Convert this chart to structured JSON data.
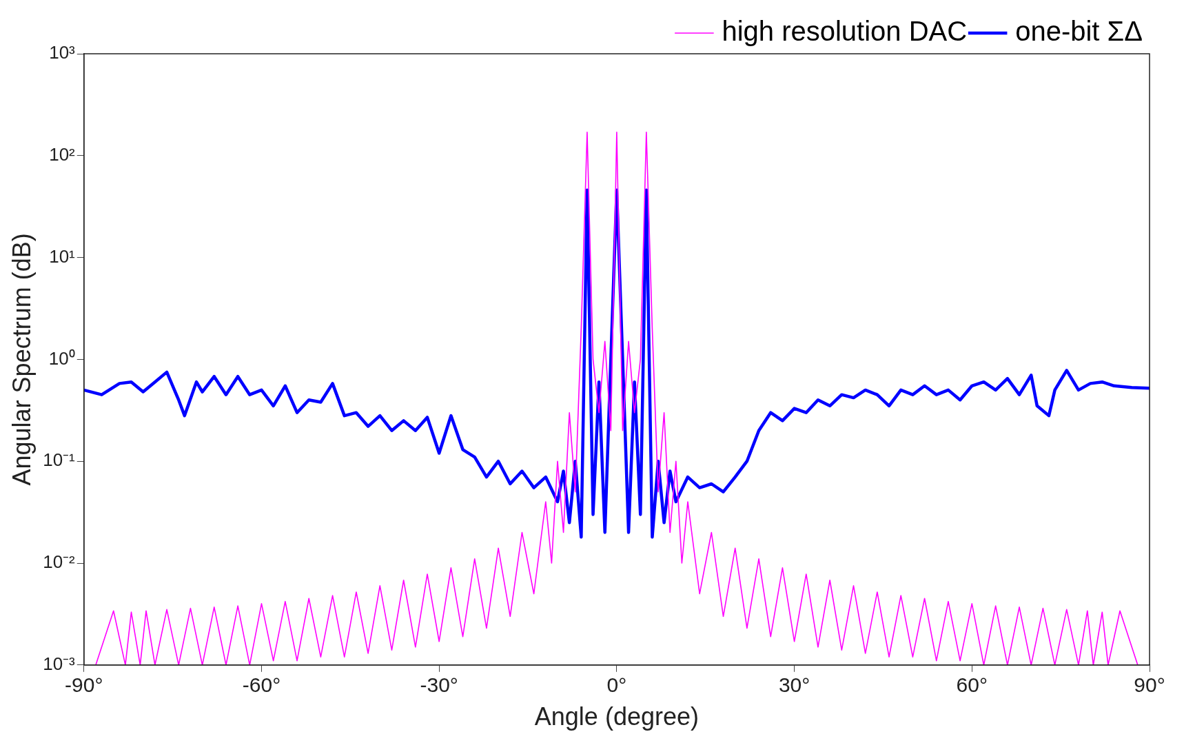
{
  "chart_data": {
    "type": "line",
    "xlabel": "Angle (degree)",
    "ylabel": "Angular Spectrum (dB)",
    "log": "y",
    "grid": false,
    "legend": "top right",
    "marker": "none",
    "line_style": "solid",
    "xlim": [
      -90,
      90
    ],
    "xticks": [
      {
        "value": -90,
        "label": "-90°"
      },
      {
        "value": -60,
        "label": "-60°"
      },
      {
        "value": -30,
        "label": "-30°"
      },
      {
        "value": 0,
        "label": "0°"
      },
      {
        "value": 30,
        "label": "30°"
      },
      {
        "value": 60,
        "label": "60°"
      },
      {
        "value": 90,
        "label": "90°"
      }
    ],
    "ylim": [
      0.001,
      1000
    ],
    "yticks": [
      {
        "value": 0.001,
        "label": "10⁻³"
      },
      {
        "value": 0.01,
        "label": "10⁻²"
      },
      {
        "value": 0.1,
        "label": "10⁻¹"
      },
      {
        "value": 1,
        "label": "10⁰"
      },
      {
        "value": 10,
        "label": "10¹"
      },
      {
        "value": 100,
        "label": "10²"
      },
      {
        "value": 1000,
        "label": "10³"
      }
    ],
    "series": [
      {
        "name": "high resolution DAC",
        "color": "#ff00ff",
        "x": [
          -88,
          -85,
          -83,
          -82,
          -80.5,
          -79.5,
          -78,
          -76,
          -74,
          -72,
          -70,
          -68,
          -66,
          -64,
          -62,
          -60,
          -58,
          -56,
          -54,
          -52,
          -50,
          -48,
          -46,
          -44,
          -42,
          -40,
          -38,
          -36,
          -34,
          -32,
          -30,
          -28,
          -26,
          -24,
          -22,
          -20,
          -18,
          -16,
          -14,
          -12,
          -11,
          -10,
          -9,
          -8,
          -7,
          -6,
          -5,
          -4,
          -3,
          -2,
          -1,
          0,
          1,
          2,
          3,
          4,
          5,
          6,
          7,
          8,
          9,
          10,
          11,
          12,
          14,
          16,
          18,
          20,
          22,
          24,
          26,
          28,
          30,
          32,
          34,
          36,
          38,
          40,
          42,
          44,
          46,
          48,
          50,
          52,
          54,
          56,
          58,
          60,
          62,
          64,
          66,
          68,
          70,
          72,
          74,
          76,
          78,
          79.5,
          80.5,
          82,
          83,
          85,
          88
        ],
        "values": [
          0.001,
          0.0034,
          0.001,
          0.0033,
          0.001,
          0.0034,
          0.001,
          0.0035,
          0.001,
          0.0036,
          0.001,
          0.0037,
          0.001,
          0.0038,
          0.001,
          0.004,
          0.0011,
          0.0042,
          0.0011,
          0.0045,
          0.0012,
          0.0048,
          0.0012,
          0.0052,
          0.0013,
          0.006,
          0.0014,
          0.0068,
          0.0015,
          0.0078,
          0.0017,
          0.009,
          0.0019,
          0.011,
          0.0023,
          0.014,
          0.003,
          0.02,
          0.005,
          0.04,
          0.01,
          0.1,
          0.02,
          0.3,
          0.05,
          2,
          170,
          1,
          0.3,
          1.5,
          0.2,
          170,
          0.2,
          1.5,
          0.3,
          1,
          170,
          2,
          0.05,
          0.3,
          0.02,
          0.1,
          0.01,
          0.04,
          0.005,
          0.02,
          0.003,
          0.014,
          0.0023,
          0.011,
          0.0019,
          0.009,
          0.0017,
          0.0078,
          0.0015,
          0.0068,
          0.0014,
          0.006,
          0.0013,
          0.0052,
          0.0012,
          0.0048,
          0.0012,
          0.0045,
          0.0011,
          0.0042,
          0.0011,
          0.004,
          0.001,
          0.0038,
          0.001,
          0.0037,
          0.001,
          0.0036,
          0.001,
          0.0035,
          0.001,
          0.0034,
          0.001,
          0.0033,
          0.001,
          0.0034,
          0.001
        ]
      },
      {
        "name": "one-bit ΣΔ",
        "color": "#0000ff",
        "x": [
          -90,
          -87,
          -84,
          -82,
          -80,
          -78,
          -76,
          -74,
          -73,
          -71,
          -70,
          -68,
          -66,
          -64,
          -62,
          -60,
          -58,
          -56,
          -54,
          -52,
          -50,
          -48,
          -46,
          -44,
          -42,
          -40,
          -38,
          -36,
          -34,
          -32,
          -30,
          -28,
          -26,
          -24,
          -22,
          -20,
          -18,
          -16,
          -14,
          -12,
          -10,
          -9,
          -8,
          -7,
          -6,
          -5,
          -4,
          -3,
          -2,
          -1,
          0,
          1,
          2,
          3,
          4,
          5,
          6,
          7,
          8,
          9,
          10,
          12,
          14,
          16,
          18,
          20,
          22,
          24,
          26,
          28,
          30,
          32,
          34,
          36,
          38,
          40,
          42,
          44,
          46,
          48,
          50,
          52,
          54,
          56,
          58,
          60,
          62,
          64,
          66,
          68,
          70,
          71,
          73,
          74,
          76,
          78,
          80,
          82,
          84,
          87,
          90
        ],
        "values": [
          0.5,
          0.45,
          0.58,
          0.6,
          0.48,
          0.6,
          0.75,
          0.4,
          0.28,
          0.6,
          0.48,
          0.68,
          0.45,
          0.68,
          0.45,
          0.5,
          0.35,
          0.55,
          0.3,
          0.4,
          0.38,
          0.58,
          0.28,
          0.3,
          0.22,
          0.28,
          0.2,
          0.25,
          0.2,
          0.27,
          0.12,
          0.28,
          0.13,
          0.11,
          0.07,
          0.1,
          0.06,
          0.08,
          0.055,
          0.07,
          0.04,
          0.08,
          0.025,
          0.1,
          0.018,
          46,
          0.03,
          0.6,
          0.02,
          1,
          46,
          1,
          0.02,
          0.6,
          0.03,
          46,
          0.018,
          0.1,
          0.025,
          0.08,
          0.04,
          0.07,
          0.055,
          0.06,
          0.05,
          0.07,
          0.1,
          0.2,
          0.3,
          0.25,
          0.33,
          0.3,
          0.4,
          0.35,
          0.45,
          0.42,
          0.5,
          0.45,
          0.35,
          0.5,
          0.45,
          0.55,
          0.45,
          0.5,
          0.4,
          0.55,
          0.6,
          0.5,
          0.65,
          0.45,
          0.7,
          0.35,
          0.28,
          0.5,
          0.78,
          0.5,
          0.58,
          0.6,
          0.55,
          0.53,
          0.52
        ]
      }
    ]
  }
}
